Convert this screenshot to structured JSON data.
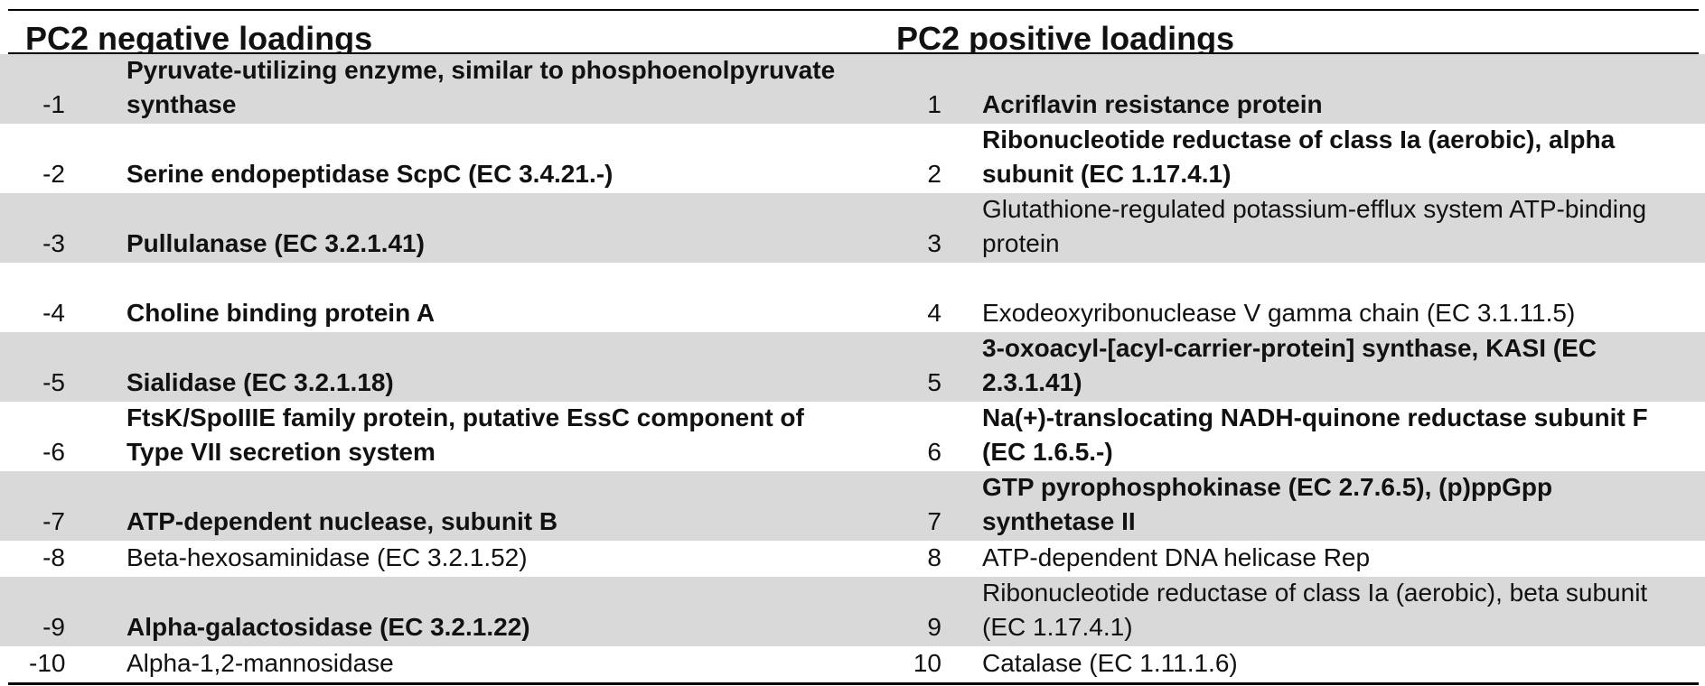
{
  "headers": {
    "negative": "PC2 negative loadings",
    "positive": "PC2 positive loadings"
  },
  "rows": [
    {
      "neg_rank": "-1",
      "neg_text": "Pyruvate-utilizing enzyme, similar to phosphoenolpyruvate synthase",
      "neg_bold": true,
      "pos_rank": "1",
      "pos_text": "Acriflavin resistance protein",
      "pos_bold": true
    },
    {
      "neg_rank": "-2",
      "neg_text": "Serine endopeptidase ScpC (EC 3.4.21.-)",
      "neg_bold": true,
      "pos_rank": "2",
      "pos_text": "Ribonucleotide reductase of class Ia (aerobic), alpha subunit (EC 1.17.4.1)",
      "pos_bold": true
    },
    {
      "neg_rank": "-3",
      "neg_text": "Pullulanase (EC 3.2.1.41)",
      "neg_bold": true,
      "pos_rank": "3",
      "pos_text": "Glutathione-regulated potassium-efflux system ATP-binding protein",
      "pos_bold": false
    },
    {
      "neg_rank": "-4",
      "neg_text": "Choline binding protein A",
      "neg_bold": true,
      "pos_rank": "4",
      "pos_text": "Exodeoxyribonuclease V gamma chain (EC 3.1.11.5)",
      "pos_bold": false
    },
    {
      "neg_rank": "-5",
      "neg_text": "Sialidase (EC 3.2.1.18)",
      "neg_bold": true,
      "pos_rank": "5",
      "pos_text": "3-oxoacyl-[acyl-carrier-protein] synthase, KASI (EC 2.3.1.41)",
      "pos_bold": true
    },
    {
      "neg_rank": "-6",
      "neg_text": "FtsK/SpoIIIE family protein, putative EssC component of Type VII secretion system",
      "neg_bold": true,
      "pos_rank": "6",
      "pos_text": "Na(+)-translocating NADH-quinone reductase subunit F (EC 1.6.5.-)",
      "pos_bold": true
    },
    {
      "neg_rank": "-7",
      "neg_text": "ATP-dependent nuclease, subunit B",
      "neg_bold": true,
      "pos_rank": "7",
      "pos_text": "GTP pyrophosphokinase (EC 2.7.6.5), (p)ppGpp synthetase II",
      "pos_bold": true
    },
    {
      "neg_rank": "-8",
      "neg_text": "Beta-hexosaminidase (EC 3.2.1.52)",
      "neg_bold": false,
      "pos_rank": "8",
      "pos_text": "ATP-dependent DNA helicase Rep",
      "pos_bold": false
    },
    {
      "neg_rank": "-9",
      "neg_text": "Alpha-galactosidase (EC 3.2.1.22)",
      "neg_bold": true,
      "pos_rank": "9",
      "pos_text": "Ribonucleotide reductase of class Ia (aerobic), beta subunit (EC 1.17.4.1)",
      "pos_bold": false
    },
    {
      "neg_rank": "-10",
      "neg_text": "Alpha-1,2-mannosidase",
      "neg_bold": false,
      "pos_rank": "10",
      "pos_text": "Catalase (EC 1.11.1.6)",
      "pos_bold": false
    }
  ],
  "colors": {
    "shade": "#d9d9d9",
    "rule": "#000000"
  }
}
